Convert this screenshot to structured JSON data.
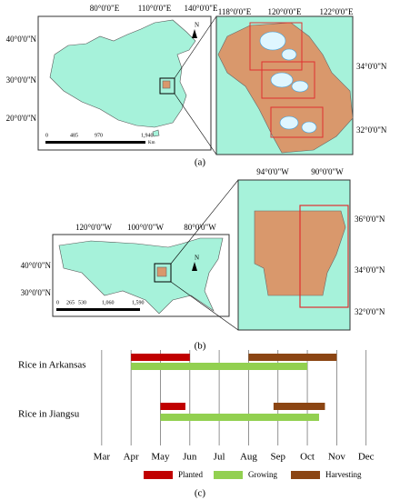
{
  "map_a": {
    "lon_labels": [
      "80°0'0\"E",
      "110°0'0\"E",
      "140°0'0\"E"
    ],
    "lat_labels": [
      "40°0'0\"N",
      "30°0'0\"N",
      "20°0'0\"N"
    ],
    "scale_labels": [
      "0",
      "485",
      "970",
      "1,940"
    ],
    "scale_unit": "Km",
    "north": "N",
    "inset_lon_labels": [
      "118°0'0\"E",
      "120°0'0\"E",
      "122°0'0\"E"
    ],
    "inset_lat_labels": [
      "34°0'0\"N",
      "32°0'0\"N"
    ],
    "caption": "(a)"
  },
  "map_b": {
    "lon_labels": [
      "120°0'0\"W",
      "100°0'0\"W",
      "80°0'0\"W"
    ],
    "lat_labels": [
      "40°0'0\"N",
      "30°0'0\"N"
    ],
    "scale_labels": [
      "0",
      "265",
      "530",
      "1,060",
      "1,590"
    ],
    "north": "N",
    "inset_lon_labels": [
      "94°0'0\"W",
      "90°0'0\"W"
    ],
    "inset_lat_labels": [
      "36°0'0\"N",
      "34°0'0\"N",
      "32°0'0\"N"
    ],
    "caption": "(b)"
  },
  "chart_data": {
    "type": "gantt",
    "categories": [
      "Rice in Arkansas",
      "Rice in Jiangsu"
    ],
    "series": [
      {
        "name": "Planted",
        "color": "#c00000",
        "values": [
          [
            4,
            6
          ],
          [
            5,
            5.85
          ]
        ]
      },
      {
        "name": "Growing",
        "color": "#92d050",
        "values": [
          [
            4,
            10
          ],
          [
            5,
            10.4
          ]
        ]
      },
      {
        "name": "Harvesting",
        "color": "#8b4513",
        "values": [
          [
            8,
            11
          ],
          [
            8.85,
            10.6
          ]
        ]
      }
    ],
    "xlim": [
      2.85,
      13
    ],
    "xticks": [
      {
        "value": 3,
        "label": "Mar"
      },
      {
        "value": 4,
        "label": "Apr"
      },
      {
        "value": 5,
        "label": "May"
      },
      {
        "value": 6,
        "label": "Jun"
      },
      {
        "value": 7,
        "label": "Jul"
      },
      {
        "value": 8,
        "label": "Aug"
      },
      {
        "value": 9,
        "label": "Sep"
      },
      {
        "value": 10,
        "label": "Oct"
      },
      {
        "value": 11,
        "label": "Nov"
      },
      {
        "value": 12,
        "label": "Dec"
      }
    ],
    "grid": true,
    "caption": "(c)"
  }
}
